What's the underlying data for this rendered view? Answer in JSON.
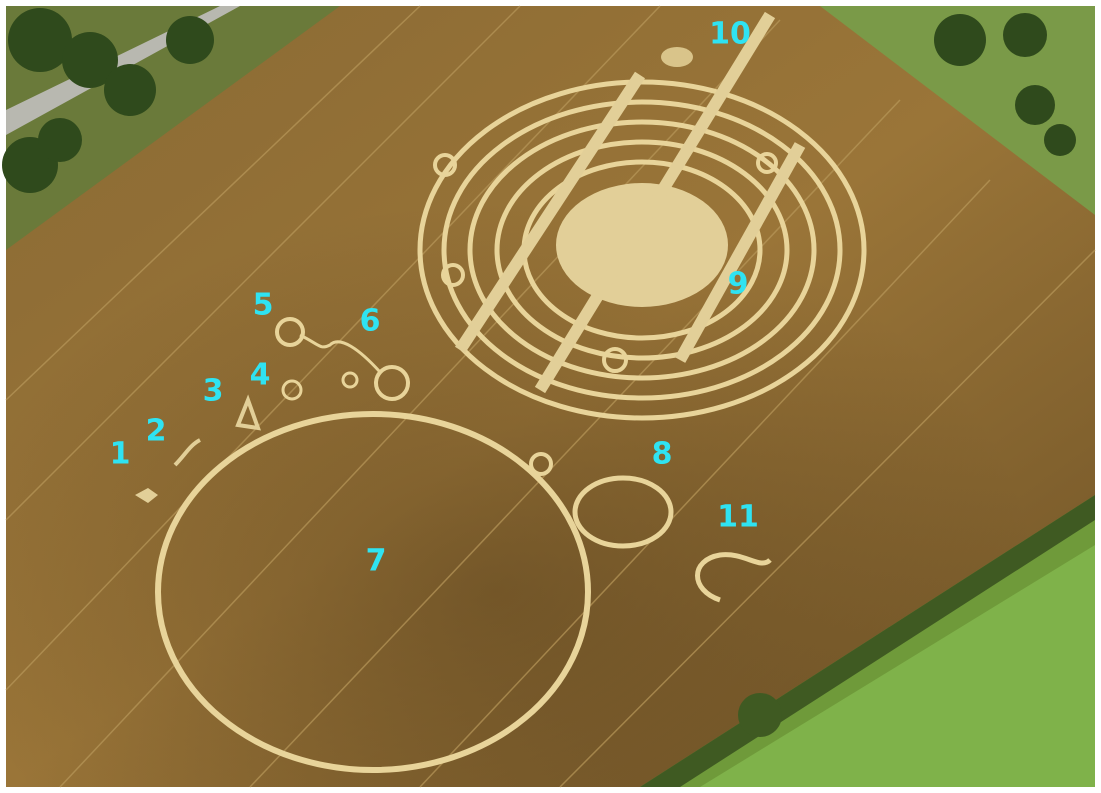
{
  "labels": [
    "1",
    "2",
    "3",
    "4",
    "5",
    "6",
    "7",
    "8",
    "9",
    "10",
    "11"
  ]
}
